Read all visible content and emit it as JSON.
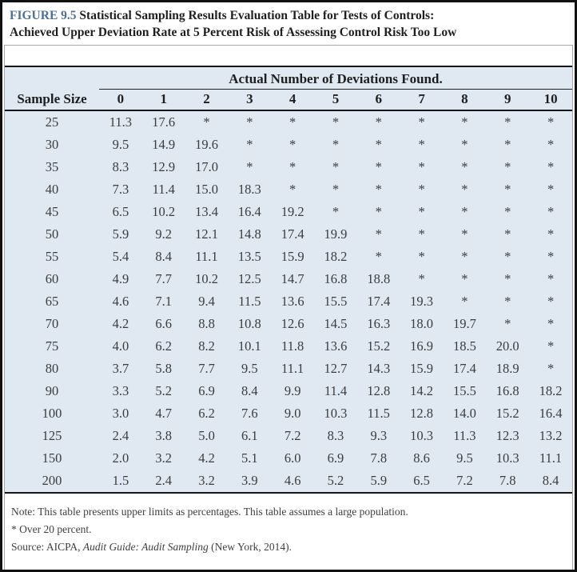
{
  "figure": {
    "label": "FIGURE 9.5",
    "title": "Statistical Sampling Results Evaluation Table for Tests of Controls:",
    "subtitle": "Achieved Upper Deviation Rate at 5 Percent Risk of Assessing Control Risk Too Low"
  },
  "table": {
    "group_header": "Actual Number of Deviations Found.",
    "row_header": "Sample Size",
    "deviation_columns": [
      "0",
      "1",
      "2",
      "3",
      "4",
      "5",
      "6",
      "7",
      "8",
      "9",
      "10"
    ],
    "rows": [
      {
        "sample_size": "25",
        "values": [
          "11.3",
          "17.6",
          "*",
          "*",
          "*",
          "*",
          "*",
          "*",
          "*",
          "*",
          "*"
        ]
      },
      {
        "sample_size": "30",
        "values": [
          "9.5",
          "14.9",
          "19.6",
          "*",
          "*",
          "*",
          "*",
          "*",
          "*",
          "*",
          "*"
        ]
      },
      {
        "sample_size": "35",
        "values": [
          "8.3",
          "12.9",
          "17.0",
          "*",
          "*",
          "*",
          "*",
          "*",
          "*",
          "*",
          "*"
        ]
      },
      {
        "sample_size": "40",
        "values": [
          "7.3",
          "11.4",
          "15.0",
          "18.3",
          "*",
          "*",
          "*",
          "*",
          "*",
          "*",
          "*"
        ]
      },
      {
        "sample_size": "45",
        "values": [
          "6.5",
          "10.2",
          "13.4",
          "16.4",
          "19.2",
          "*",
          "*",
          "*",
          "*",
          "*",
          "*"
        ]
      },
      {
        "sample_size": "50",
        "values": [
          "5.9",
          "9.2",
          "12.1",
          "14.8",
          "17.4",
          "19.9",
          "*",
          "*",
          "*",
          "*",
          "*"
        ]
      },
      {
        "sample_size": "55",
        "values": [
          "5.4",
          "8.4",
          "11.1",
          "13.5",
          "15.9",
          "18.2",
          "*",
          "*",
          "*",
          "*",
          "*"
        ]
      },
      {
        "sample_size": "60",
        "values": [
          "4.9",
          "7.7",
          "10.2",
          "12.5",
          "14.7",
          "16.8",
          "18.8",
          "*",
          "*",
          "*",
          "*"
        ]
      },
      {
        "sample_size": "65",
        "values": [
          "4.6",
          "7.1",
          "9.4",
          "11.5",
          "13.6",
          "15.5",
          "17.4",
          "19.3",
          "*",
          "*",
          "*"
        ]
      },
      {
        "sample_size": "70",
        "values": [
          "4.2",
          "6.6",
          "8.8",
          "10.8",
          "12.6",
          "14.5",
          "16.3",
          "18.0",
          "19.7",
          "*",
          "*"
        ]
      },
      {
        "sample_size": "75",
        "values": [
          "4.0",
          "6.2",
          "8.2",
          "10.1",
          "11.8",
          "13.6",
          "15.2",
          "16.9",
          "18.5",
          "20.0",
          "*"
        ]
      },
      {
        "sample_size": "80",
        "values": [
          "3.7",
          "5.8",
          "7.7",
          "9.5",
          "11.1",
          "12.7",
          "14.3",
          "15.9",
          "17.4",
          "18.9",
          "*"
        ]
      },
      {
        "sample_size": "90",
        "values": [
          "3.3",
          "5.2",
          "6.9",
          "8.4",
          "9.9",
          "11.4",
          "12.8",
          "14.2",
          "15.5",
          "16.8",
          "18.2"
        ]
      },
      {
        "sample_size": "100",
        "values": [
          "3.0",
          "4.7",
          "6.2",
          "7.6",
          "9.0",
          "10.3",
          "11.5",
          "12.8",
          "14.0",
          "15.2",
          "16.4"
        ]
      },
      {
        "sample_size": "125",
        "values": [
          "2.4",
          "3.8",
          "5.0",
          "6.1",
          "7.2",
          "8.3",
          "9.3",
          "10.3",
          "11.3",
          "12.3",
          "13.2"
        ]
      },
      {
        "sample_size": "150",
        "values": [
          "2.0",
          "3.2",
          "4.2",
          "5.1",
          "6.0",
          "6.9",
          "7.8",
          "8.6",
          "9.5",
          "10.3",
          "11.1"
        ]
      },
      {
        "sample_size": "200",
        "values": [
          "1.5",
          "2.4",
          "3.2",
          "3.9",
          "4.6",
          "5.2",
          "5.9",
          "6.5",
          "7.2",
          "7.8",
          "8.4"
        ]
      }
    ]
  },
  "notes": {
    "note": "Note: This table presents upper limits as percentages. This table assumes a large population.",
    "asterisk_note": "* Over 20 percent.",
    "source_prefix": "Source: AICPA, ",
    "source_italic": "Audit Guide: Audit Sampling",
    "source_suffix": " (New York, 2014)."
  },
  "colors": {
    "figure_label_blue": "#4c7197",
    "table_background": "#e0e9f2",
    "outer_border": "#111111",
    "rule_black": "#161616",
    "side_border_gray": "#a8a8a8"
  }
}
